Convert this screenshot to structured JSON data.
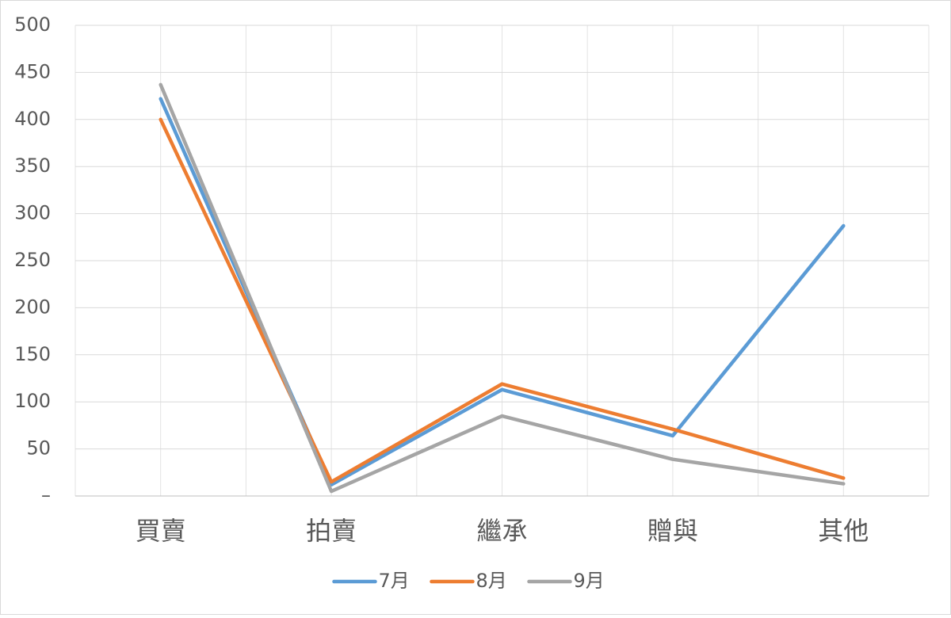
{
  "chart_data": {
    "type": "line",
    "categories": [
      "買賣",
      "拍賣",
      "繼承",
      "贈與",
      "其他"
    ],
    "series": [
      {
        "name": "7月",
        "color": "#5b9bd5",
        "values": [
          422,
          12,
          113,
          64,
          287
        ]
      },
      {
        "name": "8月",
        "color": "#ed7d31",
        "values": [
          400,
          15,
          119,
          71,
          19
        ]
      },
      {
        "name": "9月",
        "color": "#a5a5a5",
        "values": [
          437,
          5,
          85,
          39,
          13
        ]
      }
    ],
    "ylim": [
      0,
      500
    ],
    "yticks": [
      {
        "value": 0,
        "label": "–"
      },
      50,
      100,
      150,
      200,
      250,
      300,
      350,
      400,
      450,
      500
    ],
    "grid": true,
    "legend": "bottom"
  }
}
